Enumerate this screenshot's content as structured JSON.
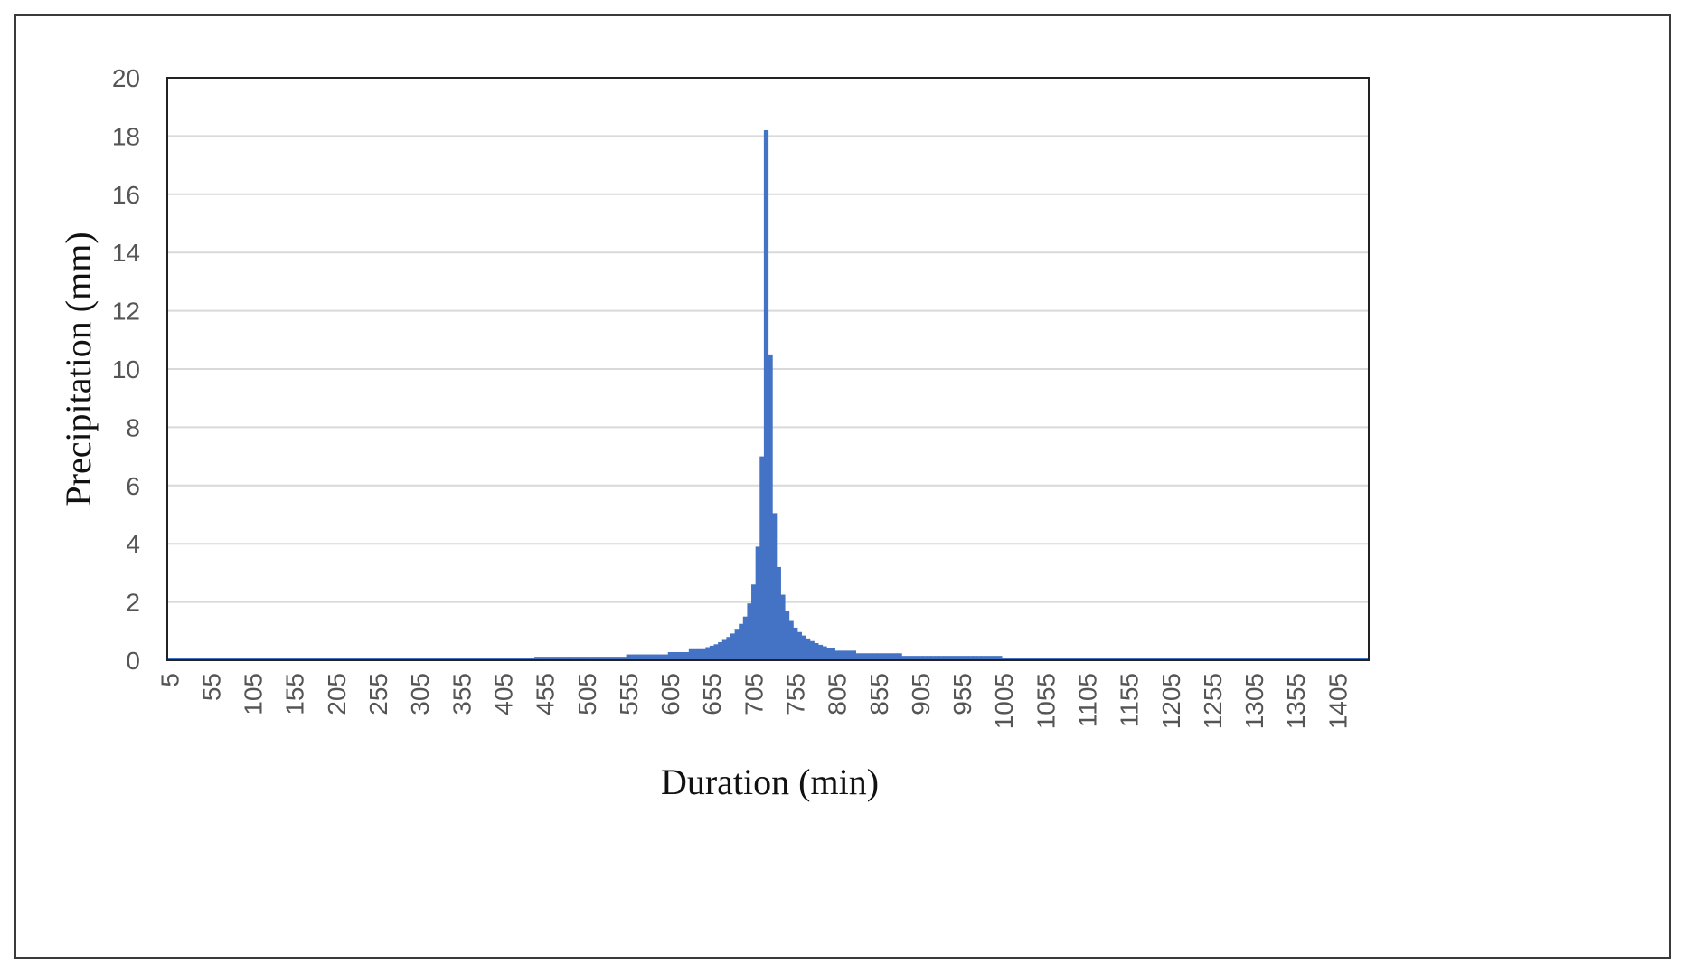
{
  "chart_data": {
    "type": "bar",
    "xlabel": "Duration (min)",
    "ylabel": "Precipitation (mm)",
    "ylim": [
      0,
      20
    ],
    "yticks": [
      0,
      2,
      4,
      6,
      8,
      10,
      12,
      14,
      16,
      18,
      20
    ],
    "x_start": 5,
    "x_end": 1440,
    "x_step": 5,
    "xtick_labels": [
      "5",
      "55",
      "105",
      "155",
      "205",
      "255",
      "305",
      "355",
      "405",
      "455",
      "505",
      "555",
      "605",
      "655",
      "705",
      "755",
      "805",
      "855",
      "905",
      "955",
      "1005",
      "1055",
      "1105",
      "1155",
      "1205",
      "1255",
      "1305",
      "1355",
      "1405"
    ],
    "grid": true,
    "legend": "none",
    "bar_color": "#4472c4",
    "gridline_color": "#d9d9d9",
    "series": [
      {
        "profile": [
          {
            "from": 5,
            "to": 440,
            "value": 0.07
          },
          {
            "from": 445,
            "to": 550,
            "value": 0.12
          },
          {
            "from": 555,
            "to": 600,
            "value": 0.2
          },
          {
            "from": 605,
            "to": 625,
            "value": 0.28
          },
          {
            "from": 630,
            "to": 645,
            "value": 0.38
          },
          {
            "from": 650,
            "to": 650,
            "value": 0.45
          },
          {
            "from": 655,
            "to": 655,
            "value": 0.5
          },
          {
            "from": 660,
            "to": 660,
            "value": 0.55
          },
          {
            "from": 665,
            "to": 665,
            "value": 0.62
          },
          {
            "from": 670,
            "to": 670,
            "value": 0.7
          },
          {
            "from": 675,
            "to": 675,
            "value": 0.8
          },
          {
            "from": 680,
            "to": 680,
            "value": 0.92
          },
          {
            "from": 685,
            "to": 685,
            "value": 1.05
          },
          {
            "from": 690,
            "to": 690,
            "value": 1.25
          },
          {
            "from": 695,
            "to": 695,
            "value": 1.5
          },
          {
            "from": 700,
            "to": 700,
            "value": 1.95
          },
          {
            "from": 705,
            "to": 705,
            "value": 2.6
          },
          {
            "from": 710,
            "to": 710,
            "value": 3.9
          },
          {
            "from": 715,
            "to": 715,
            "value": 7.0
          },
          {
            "from": 720,
            "to": 720,
            "value": 18.2
          },
          {
            "from": 725,
            "to": 725,
            "value": 10.5
          },
          {
            "from": 730,
            "to": 730,
            "value": 5.05
          },
          {
            "from": 735,
            "to": 735,
            "value": 3.2
          },
          {
            "from": 740,
            "to": 740,
            "value": 2.25
          },
          {
            "from": 745,
            "to": 745,
            "value": 1.7
          },
          {
            "from": 750,
            "to": 750,
            "value": 1.35
          },
          {
            "from": 755,
            "to": 755,
            "value": 1.12
          },
          {
            "from": 760,
            "to": 760,
            "value": 0.97
          },
          {
            "from": 765,
            "to": 765,
            "value": 0.85
          },
          {
            "from": 770,
            "to": 770,
            "value": 0.75
          },
          {
            "from": 775,
            "to": 775,
            "value": 0.66
          },
          {
            "from": 780,
            "to": 780,
            "value": 0.59
          },
          {
            "from": 785,
            "to": 785,
            "value": 0.53
          },
          {
            "from": 790,
            "to": 790,
            "value": 0.48
          },
          {
            "from": 795,
            "to": 800,
            "value": 0.42
          },
          {
            "from": 805,
            "to": 825,
            "value": 0.33
          },
          {
            "from": 830,
            "to": 880,
            "value": 0.24
          },
          {
            "from": 885,
            "to": 1000,
            "value": 0.15
          },
          {
            "from": 1005,
            "to": 1440,
            "value": 0.07
          }
        ]
      }
    ]
  }
}
